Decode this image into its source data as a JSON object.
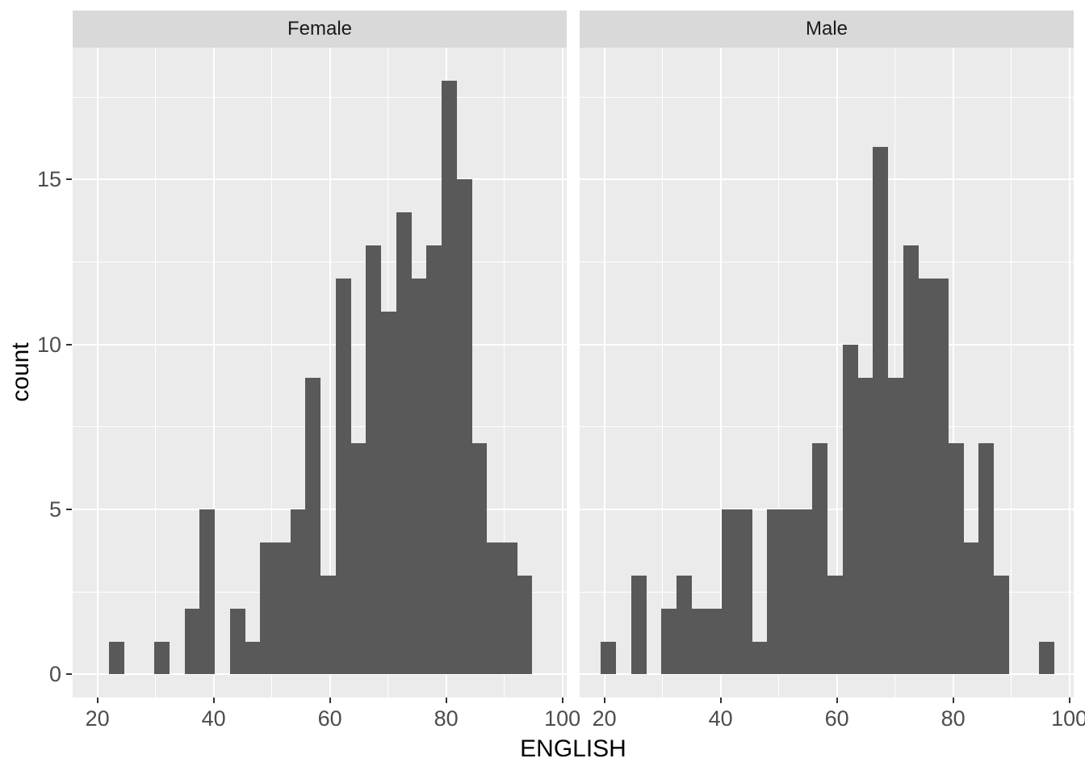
{
  "chart_data": {
    "type": "bar",
    "subtype": "faceted-histogram",
    "title": "",
    "xlabel": "ENGLISH",
    "ylabel": "count",
    "binwidth": 2.6,
    "x_domain": [
      15.75,
      100.75
    ],
    "y_domain": [
      -0.7,
      19.0
    ],
    "x_major_ticks": [
      20,
      40,
      60,
      80,
      100
    ],
    "x_minor_ticks": [
      30,
      50,
      70,
      90
    ],
    "y_major_ticks": [
      0,
      5,
      10,
      15
    ],
    "y_minor_ticks": [
      2.5,
      7.5,
      12.5,
      17.5
    ],
    "legend": "none",
    "grid": "on",
    "facets": [
      {
        "label": "Female",
        "bin_start": 22.0,
        "counts": [
          1,
          0,
          0,
          1,
          0,
          2,
          5,
          0,
          2,
          1,
          4,
          4,
          5,
          9,
          3,
          12,
          7,
          13,
          11,
          14,
          12,
          13,
          18,
          15,
          7,
          4,
          4,
          3
        ]
      },
      {
        "label": "Male",
        "bin_start": 19.4,
        "counts": [
          1,
          0,
          3,
          0,
          2,
          3,
          2,
          2,
          5,
          5,
          1,
          5,
          5,
          5,
          7,
          3,
          10,
          9,
          16,
          9,
          13,
          12,
          12,
          7,
          4,
          7,
          3,
          0,
          0,
          1
        ]
      }
    ]
  },
  "colors": {
    "background": "#FFFFFF",
    "panel_bg": "#EBEBEB",
    "strip_bg": "#D9D9D9",
    "strip_text": "#1A1A1A",
    "bar_fill": "#595959",
    "gridline": "#FFFFFF",
    "tick_mark": "#333333",
    "tick_text": "#4D4D4D",
    "axis_title_text": "#000000"
  }
}
